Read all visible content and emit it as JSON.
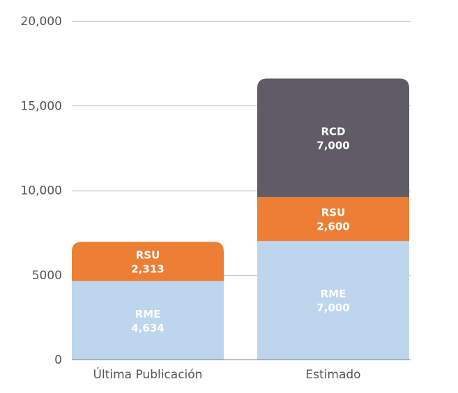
{
  "chart_data": {
    "type": "bar",
    "stacked": true,
    "categories": [
      "Última Publicación",
      "Estimado"
    ],
    "series": [
      {
        "name": "RME",
        "values": [
          4634,
          7000
        ],
        "labels": [
          "4,634",
          "7,000"
        ],
        "color": "#bed6ed"
      },
      {
        "name": "RSU",
        "values": [
          2313,
          2600
        ],
        "labels": [
          "2,313",
          "2,600"
        ],
        "color": "#ec7f35"
      },
      {
        "name": "RCD",
        "values": [
          0,
          7000
        ],
        "labels": [
          "",
          "7,000"
        ],
        "color": "#5f5b67"
      }
    ],
    "yticks": [
      0,
      5000,
      10000,
      15000,
      20000
    ],
    "ytick_labels": [
      "0",
      "5000",
      "10,000",
      "15,000",
      "20,000"
    ],
    "ylim": [
      0,
      20000
    ],
    "grid": true,
    "title": "",
    "xlabel": "",
    "ylabel": ""
  }
}
